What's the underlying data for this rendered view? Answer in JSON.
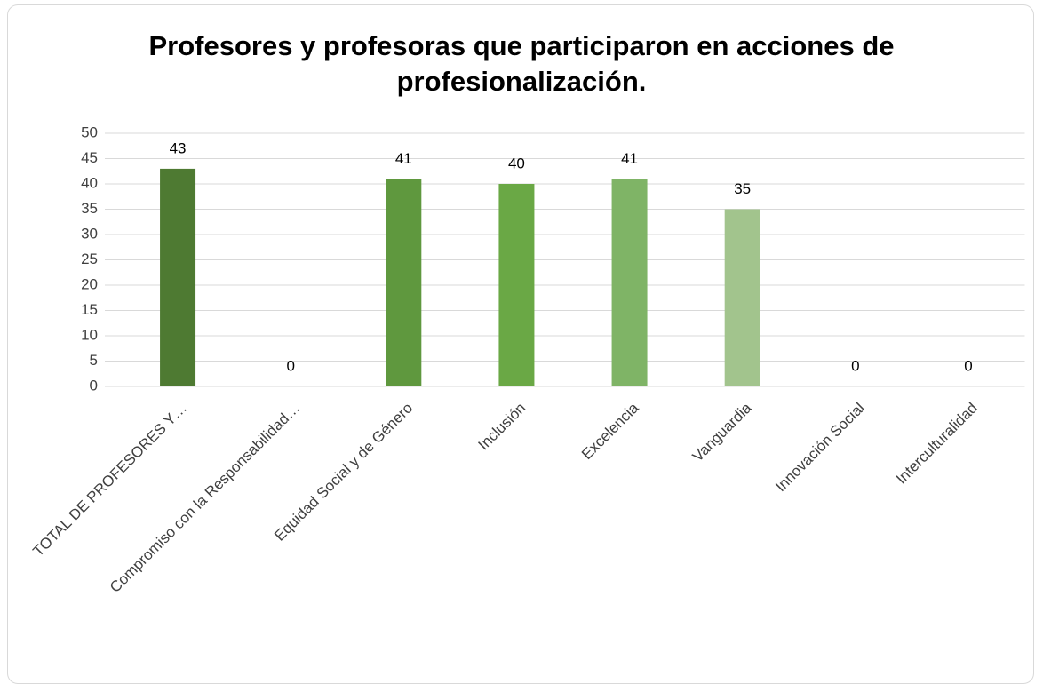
{
  "chart_data": {
    "type": "bar",
    "title": "Profesores y profesoras que participaron en acciones de profesionalización.",
    "categories": [
      "TOTAL DE PROFESORES Y…",
      "Compromiso con la Responsabilidad…",
      "Equidad Social y de Género",
      "Inclusión",
      "Excelencia",
      "Vanguardia",
      "Innovación Social",
      "Interculturalidad"
    ],
    "values": [
      43,
      0,
      41,
      40,
      41,
      35,
      0,
      0
    ],
    "colors": [
      "#4e7a32",
      "#578a38",
      "#5f983e",
      "#6aa845",
      "#7fb466",
      "#a2c48d",
      "#b8d4a6",
      "#c8dfba"
    ],
    "ylim": [
      0,
      50
    ],
    "yticks": [
      0,
      5,
      10,
      15,
      20,
      25,
      30,
      35,
      40,
      45,
      50
    ],
    "grid": true
  }
}
